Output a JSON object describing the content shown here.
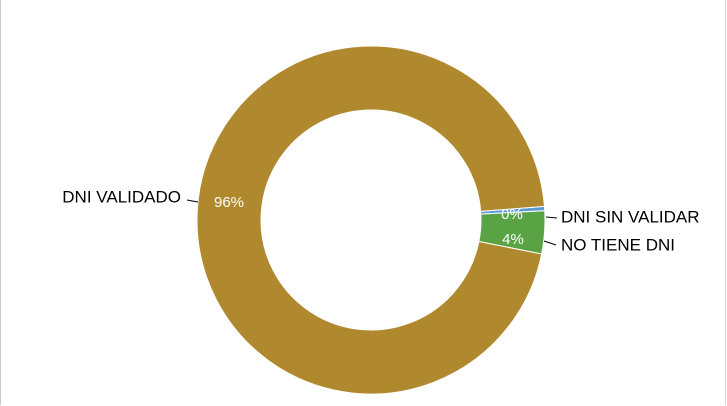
{
  "chart_data": {
    "type": "pie",
    "donut": true,
    "slices": [
      {
        "label": "DNI VALIDADO",
        "value": 96,
        "display": "96%",
        "color": "#b0882d"
      },
      {
        "label": "DNI SIN VALIDAR",
        "value": 0.4,
        "display": "0%",
        "color": "#5b9bd5"
      },
      {
        "label": "NO TIENE DNI",
        "value": 4,
        "display": "4%",
        "color": "#5aa344"
      }
    ],
    "legend": "none",
    "title": ""
  }
}
